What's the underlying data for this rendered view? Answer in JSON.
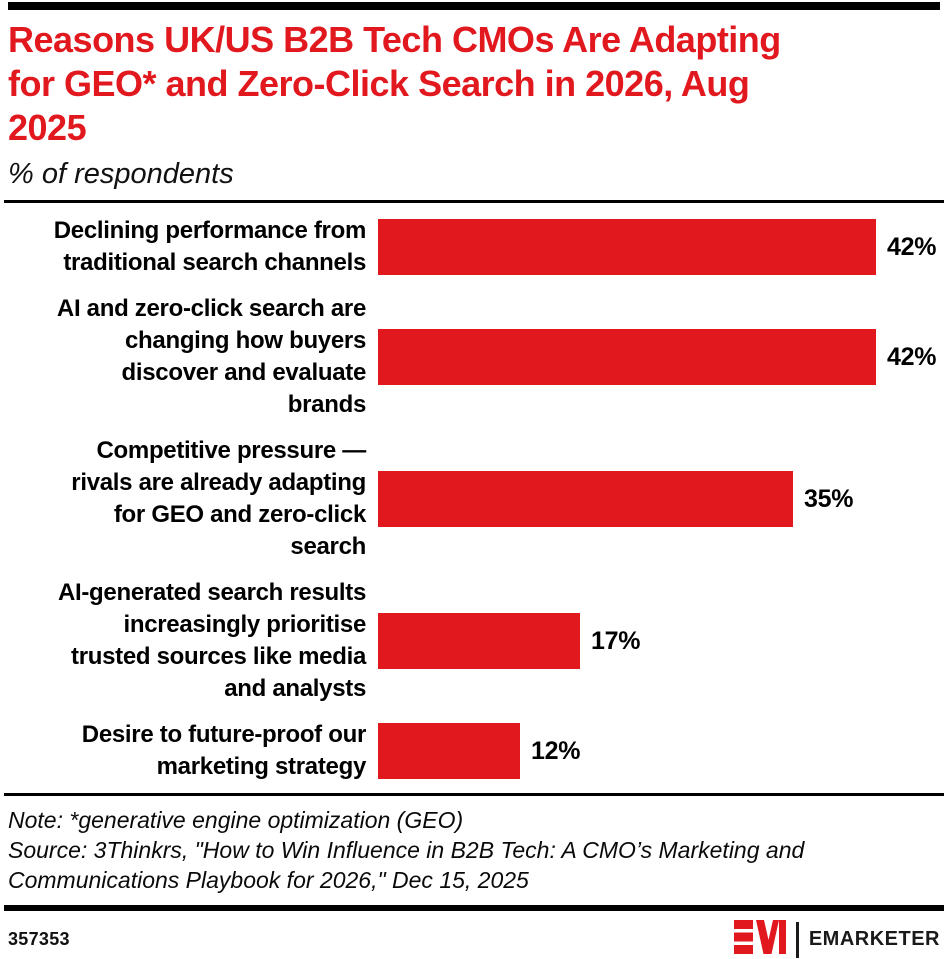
{
  "header": {
    "title": "Reasons UK/US B2B Tech CMOs Are Adapting\nfor GEO* and Zero-Click Search in 2026, Aug\n2025",
    "subtitle": "% of respondents"
  },
  "chart_data": {
    "type": "bar",
    "orientation": "horizontal",
    "unit": "% of respondents",
    "categories": [
      "Declining performance from traditional search channels",
      "AI and zero-click search are changing how buyers discover and evaluate brands",
      "Competitive pressure — rivals are already adapting for GEO and zero-click search",
      "AI-generated search results increasingly prioritise trusted sources like media and analysts",
      "Desire to future-proof our marketing strategy"
    ],
    "category_lines": [
      [
        "Declining performance from",
        "traditional search channels"
      ],
      [
        "AI and zero-click search are",
        "changing how buyers",
        "discover and evaluate",
        "brands"
      ],
      [
        "Competitive pressure —",
        "rivals are already adapting",
        "for GEO and zero-click",
        "search"
      ],
      [
        "AI-generated search results",
        "increasingly prioritise",
        "trusted sources like media",
        "and analysts"
      ],
      [
        "Desire to future-proof our",
        "marketing strategy"
      ]
    ],
    "values": [
      42,
      42,
      35,
      17,
      12
    ],
    "value_labels": [
      "42%",
      "42%",
      "35%",
      "17%",
      "12%"
    ],
    "xlim": [
      0,
      47.5
    ],
    "grid": false,
    "legend": false,
    "bar_color": "#e2181f",
    "title": "Reasons UK/US B2B Tech CMOs Are Adapting for GEO* and Zero-Click Search in 2026, Aug 2025",
    "subtitle": "% of respondents"
  },
  "notes": {
    "note_line": "Note: *generative engine optimization (GEO)",
    "source_line": "Source: 3Thinkrs, \"How to Win Influence in B2B Tech: A CMO’s Marketing and\nCommunications Playbook for 2026,\" Dec 15, 2025"
  },
  "footer": {
    "chart_id": "357353",
    "brand_name": "EMARKETER",
    "logo_monogram": "EM"
  },
  "colors": {
    "accent_red": "#e2181f",
    "text_black": "#000000",
    "rule_black": "#000000"
  }
}
